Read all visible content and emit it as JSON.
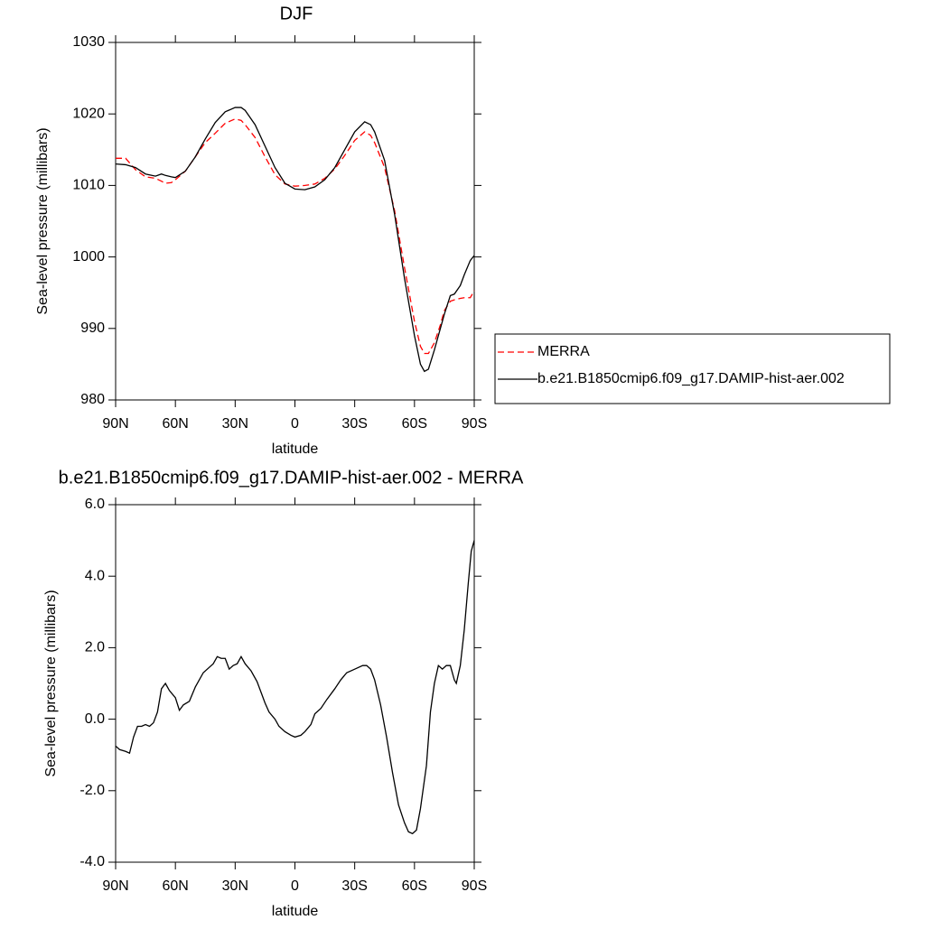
{
  "chart_data": [
    {
      "type": "line",
      "title": "DJF",
      "x_label": "latitude",
      "y_label": "Sea-level pressure (millibars)",
      "xlim": [
        90,
        -90
      ],
      "xticks": [
        {
          "value": 90,
          "label": "90N"
        },
        {
          "value": 60,
          "label": "60N"
        },
        {
          "value": 30,
          "label": "30N"
        },
        0,
        {
          "value": -30,
          "label": "30S"
        },
        {
          "value": -60,
          "label": "60S"
        },
        {
          "value": -90,
          "label": "90S"
        }
      ],
      "ylim": [
        980,
        1030
      ],
      "yticks": [
        980,
        990,
        1000,
        1010,
        1020,
        1030
      ],
      "legend": "right",
      "x": [
        90,
        85,
        80,
        75,
        70,
        67,
        65,
        62,
        60,
        55,
        50,
        45,
        40,
        35,
        30,
        27,
        25,
        20,
        15,
        10,
        5,
        0,
        -5,
        -10,
        -15,
        -20,
        -25,
        -30,
        -35,
        -38,
        -40,
        -45,
        -50,
        -55,
        -60,
        -63,
        -65,
        -67,
        -70,
        -73,
        -75,
        -78,
        -80,
        -83,
        -85,
        -88,
        -90
      ],
      "series": [
        {
          "name": "MERRA",
          "color": "#ff0000",
          "dashed": true,
          "values": [
            1013.8,
            1013.8,
            1012.2,
            1011.2,
            1011.0,
            1010.6,
            1010.3,
            1010.4,
            1010.8,
            1012.0,
            1014.0,
            1016.0,
            1017.3,
            1018.7,
            1019.3,
            1019.1,
            1018.5,
            1016.7,
            1014.0,
            1011.5,
            1010.2,
            1009.9,
            1010.0,
            1010.2,
            1011.0,
            1012.3,
            1014.2,
            1016.3,
            1017.5,
            1017.0,
            1016.0,
            1012.5,
            1006.5,
            998.5,
            991.0,
            987.5,
            986.5,
            986.5,
            988.0,
            990.5,
            992.5,
            993.8,
            994.0,
            994.2,
            994.3,
            994.3,
            995.3
          ]
        },
        {
          "name": "b.e21.B1850cmip6.f09_g17.DAMIP-hist-aer.002",
          "color": "#000000",
          "dashed": false,
          "values": [
            1013.0,
            1012.9,
            1012.5,
            1011.6,
            1011.3,
            1011.6,
            1011.4,
            1011.2,
            1011.1,
            1012.0,
            1014.0,
            1016.5,
            1018.8,
            1020.3,
            1020.9,
            1020.9,
            1020.5,
            1018.5,
            1015.5,
            1012.5,
            1010.3,
            1009.5,
            1009.4,
            1009.8,
            1010.8,
            1012.5,
            1015.0,
            1017.5,
            1018.9,
            1018.5,
            1017.5,
            1013.5,
            1006.0,
            997.0,
            989.0,
            985.0,
            984.0,
            984.3,
            987.0,
            990.0,
            992.0,
            994.6,
            994.8,
            996.0,
            997.5,
            999.5,
            1000.2
          ]
        }
      ]
    },
    {
      "type": "line",
      "title": "b.e21.B1850cmip6.f09_g17.DAMIP-hist-aer.002 - MERRA",
      "x_label": "latitude",
      "y_label": "Sea-level pressure (millibars)",
      "xlim": [
        90,
        -90
      ],
      "xticks": [
        {
          "value": 90,
          "label": "90N"
        },
        {
          "value": 60,
          "label": "60N"
        },
        {
          "value": 30,
          "label": "30N"
        },
        0,
        {
          "value": -30,
          "label": "30S"
        },
        {
          "value": -60,
          "label": "60S"
        },
        {
          "value": -90,
          "label": "90S"
        }
      ],
      "ylim": [
        -4,
        6
      ],
      "yticks": [
        {
          "value": -4,
          "label": "-4.0"
        },
        {
          "value": -2,
          "label": "-2.0"
        },
        {
          "value": 0,
          "label": "0.0"
        },
        {
          "value": 2,
          "label": "2.0"
        },
        {
          "value": 4,
          "label": "4.0"
        },
        {
          "value": 6,
          "label": "6.0"
        }
      ],
      "x": [
        90,
        88,
        85,
        83,
        81,
        79,
        77,
        75,
        73,
        71,
        69,
        67,
        65,
        63,
        60,
        58,
        56,
        53,
        50,
        46,
        43,
        41,
        39,
        37,
        35,
        33,
        31,
        29,
        27,
        25,
        22,
        19,
        17,
        15,
        13,
        10,
        8,
        5,
        2,
        0,
        -3,
        -5,
        -8,
        -10,
        -13,
        -16,
        -20,
        -23,
        -26,
        -30,
        -34,
        -36,
        -38,
        -40,
        -43,
        -46,
        -49,
        -52,
        -55,
        -57,
        -59,
        -61,
        -63,
        -66,
        -68,
        -70,
        -72,
        -74,
        -76,
        -78,
        -80,
        -81,
        -83,
        -85,
        -87,
        -88.5,
        -90
      ],
      "color": "#000000",
      "values": [
        -0.75,
        -0.85,
        -0.9,
        -0.95,
        -0.5,
        -0.2,
        -0.2,
        -0.15,
        -0.2,
        -0.1,
        0.2,
        0.85,
        1.0,
        0.8,
        0.6,
        0.25,
        0.4,
        0.5,
        0.9,
        1.3,
        1.45,
        1.55,
        1.75,
        1.7,
        1.7,
        1.4,
        1.5,
        1.55,
        1.75,
        1.55,
        1.35,
        1.05,
        0.75,
        0.45,
        0.2,
        0.0,
        -0.2,
        -0.35,
        -0.45,
        -0.5,
        -0.45,
        -0.35,
        -0.15,
        0.15,
        0.3,
        0.55,
        0.85,
        1.1,
        1.3,
        1.4,
        1.5,
        1.5,
        1.4,
        1.1,
        0.4,
        -0.5,
        -1.5,
        -2.4,
        -2.9,
        -3.15,
        -3.2,
        -3.1,
        -2.5,
        -1.3,
        0.2,
        1.0,
        1.5,
        1.4,
        1.5,
        1.5,
        1.1,
        1.0,
        1.5,
        2.5,
        3.8,
        4.7,
        5.0
      ]
    }
  ]
}
